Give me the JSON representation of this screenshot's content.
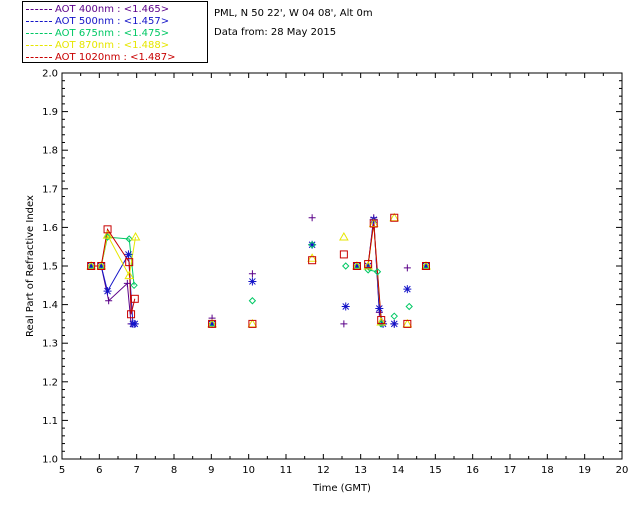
{
  "header": {
    "site_line": "PML, N 50 22', W 04 08', Alt 0m",
    "date_line": "Data from: 28 May 2015"
  },
  "legend": [
    {
      "label": "AOT  400nm : <1.465>",
      "color": "#5a0089"
    },
    {
      "label": "AOT  500nm : <1.457>",
      "color": "#1414c8"
    },
    {
      "label": "AOT  675nm : <1.475>",
      "color": "#00c864"
    },
    {
      "label": "AOT  870nm : <1.488>",
      "color": "#e6e600"
    },
    {
      "label": "AOT 1020nm : <1.487>",
      "color": "#c80000"
    }
  ],
  "chart_data": {
    "type": "scatter",
    "xlabel": "Time (GMT)",
    "ylabel": "Real Part of Refractive Index",
    "xlim": [
      5,
      20
    ],
    "ylim": [
      1.0,
      2.0
    ],
    "xticks": [
      "5",
      "6",
      "7",
      "8",
      "9",
      "10",
      "11",
      "12",
      "13",
      "14",
      "15",
      "16",
      "17",
      "18",
      "19",
      "20"
    ],
    "yticks": [
      "1.0",
      "1.1",
      "1.2",
      "1.3",
      "1.4",
      "1.5",
      "1.6",
      "1.7",
      "1.8",
      "1.9",
      "2.0"
    ],
    "grid": false,
    "series": [
      {
        "name": "AOT  400nm : <1.465>",
        "color": "#5a0089",
        "marker": "plus",
        "x": [
          5.78,
          6.05,
          6.25,
          6.75,
          6.85,
          6.95,
          9.02,
          10.1,
          11.7,
          12.55,
          12.9,
          13.2,
          13.35,
          13.5,
          13.6,
          13.9,
          14.25,
          14.75
        ],
        "y": [
          1.5,
          1.5,
          1.41,
          1.455,
          1.35,
          1.35,
          1.365,
          1.48,
          1.625,
          1.35,
          1.5,
          1.5,
          1.625,
          1.38,
          1.35,
          1.35,
          1.495,
          1.5
        ],
        "line": [
          [
            5.78,
            1.5
          ],
          [
            6.05,
            1.5
          ],
          [
            6.25,
            1.41
          ],
          [
            6.75,
            1.455
          ],
          [
            6.85,
            1.35
          ],
          [
            13.2,
            1.5
          ],
          [
            13.35,
            1.625
          ],
          [
            13.5,
            1.38
          ],
          [
            13.6,
            1.35
          ]
        ]
      },
      {
        "name": "AOT  500nm : <1.457>",
        "color": "#1414c8",
        "marker": "star",
        "x": [
          5.78,
          6.05,
          6.22,
          6.78,
          6.9,
          6.95,
          9.02,
          10.1,
          11.7,
          12.6,
          12.9,
          13.2,
          13.35,
          13.5,
          13.6,
          13.9,
          14.25,
          14.75
        ],
        "y": [
          1.5,
          1.5,
          1.435,
          1.53,
          1.35,
          1.35,
          1.35,
          1.46,
          1.555,
          1.395,
          1.5,
          1.5,
          1.62,
          1.39,
          1.35,
          1.35,
          1.44,
          1.5
        ],
        "line": [
          [
            5.78,
            1.5
          ],
          [
            6.05,
            1.5
          ],
          [
            6.22,
            1.435
          ],
          [
            6.78,
            1.53
          ],
          [
            6.9,
            1.35
          ],
          [
            13.2,
            1.5
          ],
          [
            13.35,
            1.62
          ],
          [
            13.5,
            1.39
          ],
          [
            13.6,
            1.35
          ]
        ]
      },
      {
        "name": "AOT  675nm : <1.475>",
        "color": "#00c864",
        "marker": "diamond",
        "x": [
          5.78,
          6.05,
          6.22,
          6.8,
          6.93,
          9.02,
          10.1,
          11.7,
          12.6,
          12.9,
          13.2,
          13.45,
          13.55,
          13.9,
          14.3,
          14.75
        ],
        "y": [
          1.5,
          1.5,
          1.575,
          1.57,
          1.45,
          1.35,
          1.41,
          1.555,
          1.5,
          1.5,
          1.49,
          1.485,
          1.35,
          1.37,
          1.395,
          1.5
        ],
        "line": [
          [
            5.78,
            1.5
          ],
          [
            6.05,
            1.5
          ],
          [
            6.22,
            1.575
          ],
          [
            6.8,
            1.57
          ],
          [
            6.93,
            1.45
          ],
          [
            13.2,
            1.49
          ],
          [
            13.45,
            1.485
          ],
          [
            13.55,
            1.35
          ]
        ]
      },
      {
        "name": "AOT  870nm : <1.488>",
        "color": "#e6e600",
        "marker": "triangle",
        "x": [
          5.78,
          6.05,
          6.22,
          6.8,
          6.97,
          9.02,
          10.1,
          11.7,
          12.55,
          12.9,
          13.2,
          13.35,
          13.55,
          13.9,
          14.25,
          14.75
        ],
        "y": [
          1.5,
          1.5,
          1.58,
          1.475,
          1.575,
          1.35,
          1.35,
          1.52,
          1.575,
          1.5,
          1.5,
          1.61,
          1.355,
          1.625,
          1.35,
          1.5
        ],
        "line": [
          [
            5.78,
            1.5
          ],
          [
            6.05,
            1.5
          ],
          [
            6.22,
            1.58
          ],
          [
            6.8,
            1.475
          ],
          [
            6.97,
            1.575
          ],
          [
            13.2,
            1.5
          ],
          [
            13.35,
            1.61
          ],
          [
            13.55,
            1.355
          ]
        ]
      },
      {
        "name": "AOT 1020nm : <1.487>",
        "color": "#c80000",
        "marker": "square",
        "x": [
          5.78,
          6.05,
          6.22,
          6.8,
          6.85,
          6.95,
          9.02,
          10.1,
          11.7,
          12.55,
          12.9,
          13.2,
          13.35,
          13.55,
          13.9,
          14.25,
          14.75
        ],
        "y": [
          1.5,
          1.5,
          1.595,
          1.51,
          1.375,
          1.415,
          1.35,
          1.35,
          1.515,
          1.53,
          1.5,
          1.505,
          1.61,
          1.36,
          1.625,
          1.35,
          1.5
        ],
        "line": [
          [
            5.78,
            1.5
          ],
          [
            6.05,
            1.5
          ],
          [
            6.22,
            1.595
          ],
          [
            6.8,
            1.51
          ],
          [
            6.85,
            1.375
          ],
          [
            6.95,
            1.415
          ],
          [
            13.2,
            1.505
          ],
          [
            13.35,
            1.61
          ],
          [
            13.55,
            1.36
          ]
        ]
      }
    ]
  }
}
